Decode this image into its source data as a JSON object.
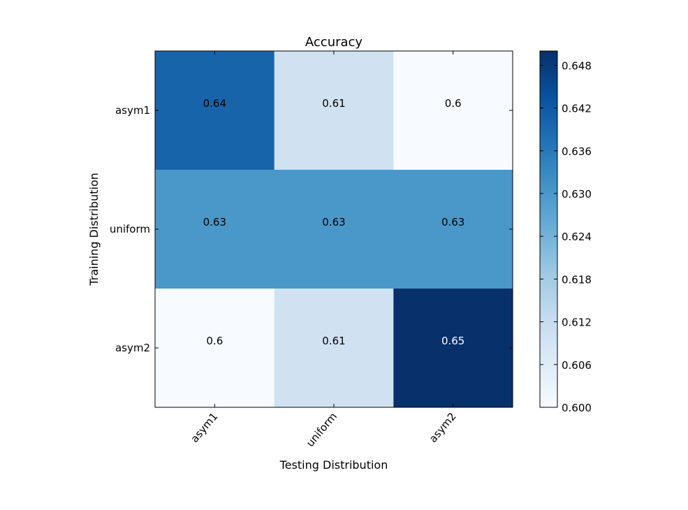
{
  "chart_data": {
    "type": "heatmap",
    "title": "Accuracy",
    "xlabel": "Testing Distribution",
    "ylabel": "Training Distribution",
    "x_categories": [
      "asym1",
      "uniform",
      "asym2"
    ],
    "y_categories": [
      "asym1",
      "uniform",
      "asym2"
    ],
    "values": [
      [
        0.64,
        0.61,
        0.6
      ],
      [
        0.63,
        0.63,
        0.63
      ],
      [
        0.6,
        0.61,
        0.65
      ]
    ],
    "cell_labels": [
      [
        "0.64",
        "0.61",
        "0.6"
      ],
      [
        "0.63",
        "0.63",
        "0.63"
      ],
      [
        "0.6",
        "0.61",
        "0.65"
      ]
    ],
    "colormap": "Blues",
    "colorbar": {
      "range": [
        0.6,
        0.65
      ],
      "ticks": [
        0.6,
        0.606,
        0.612,
        0.618,
        0.624,
        0.63,
        0.636,
        0.642,
        0.648
      ],
      "tick_labels": [
        "0.600",
        "0.606",
        "0.612",
        "0.618",
        "0.624",
        "0.630",
        "0.636",
        "0.642",
        "0.648"
      ]
    },
    "grid": false
  }
}
